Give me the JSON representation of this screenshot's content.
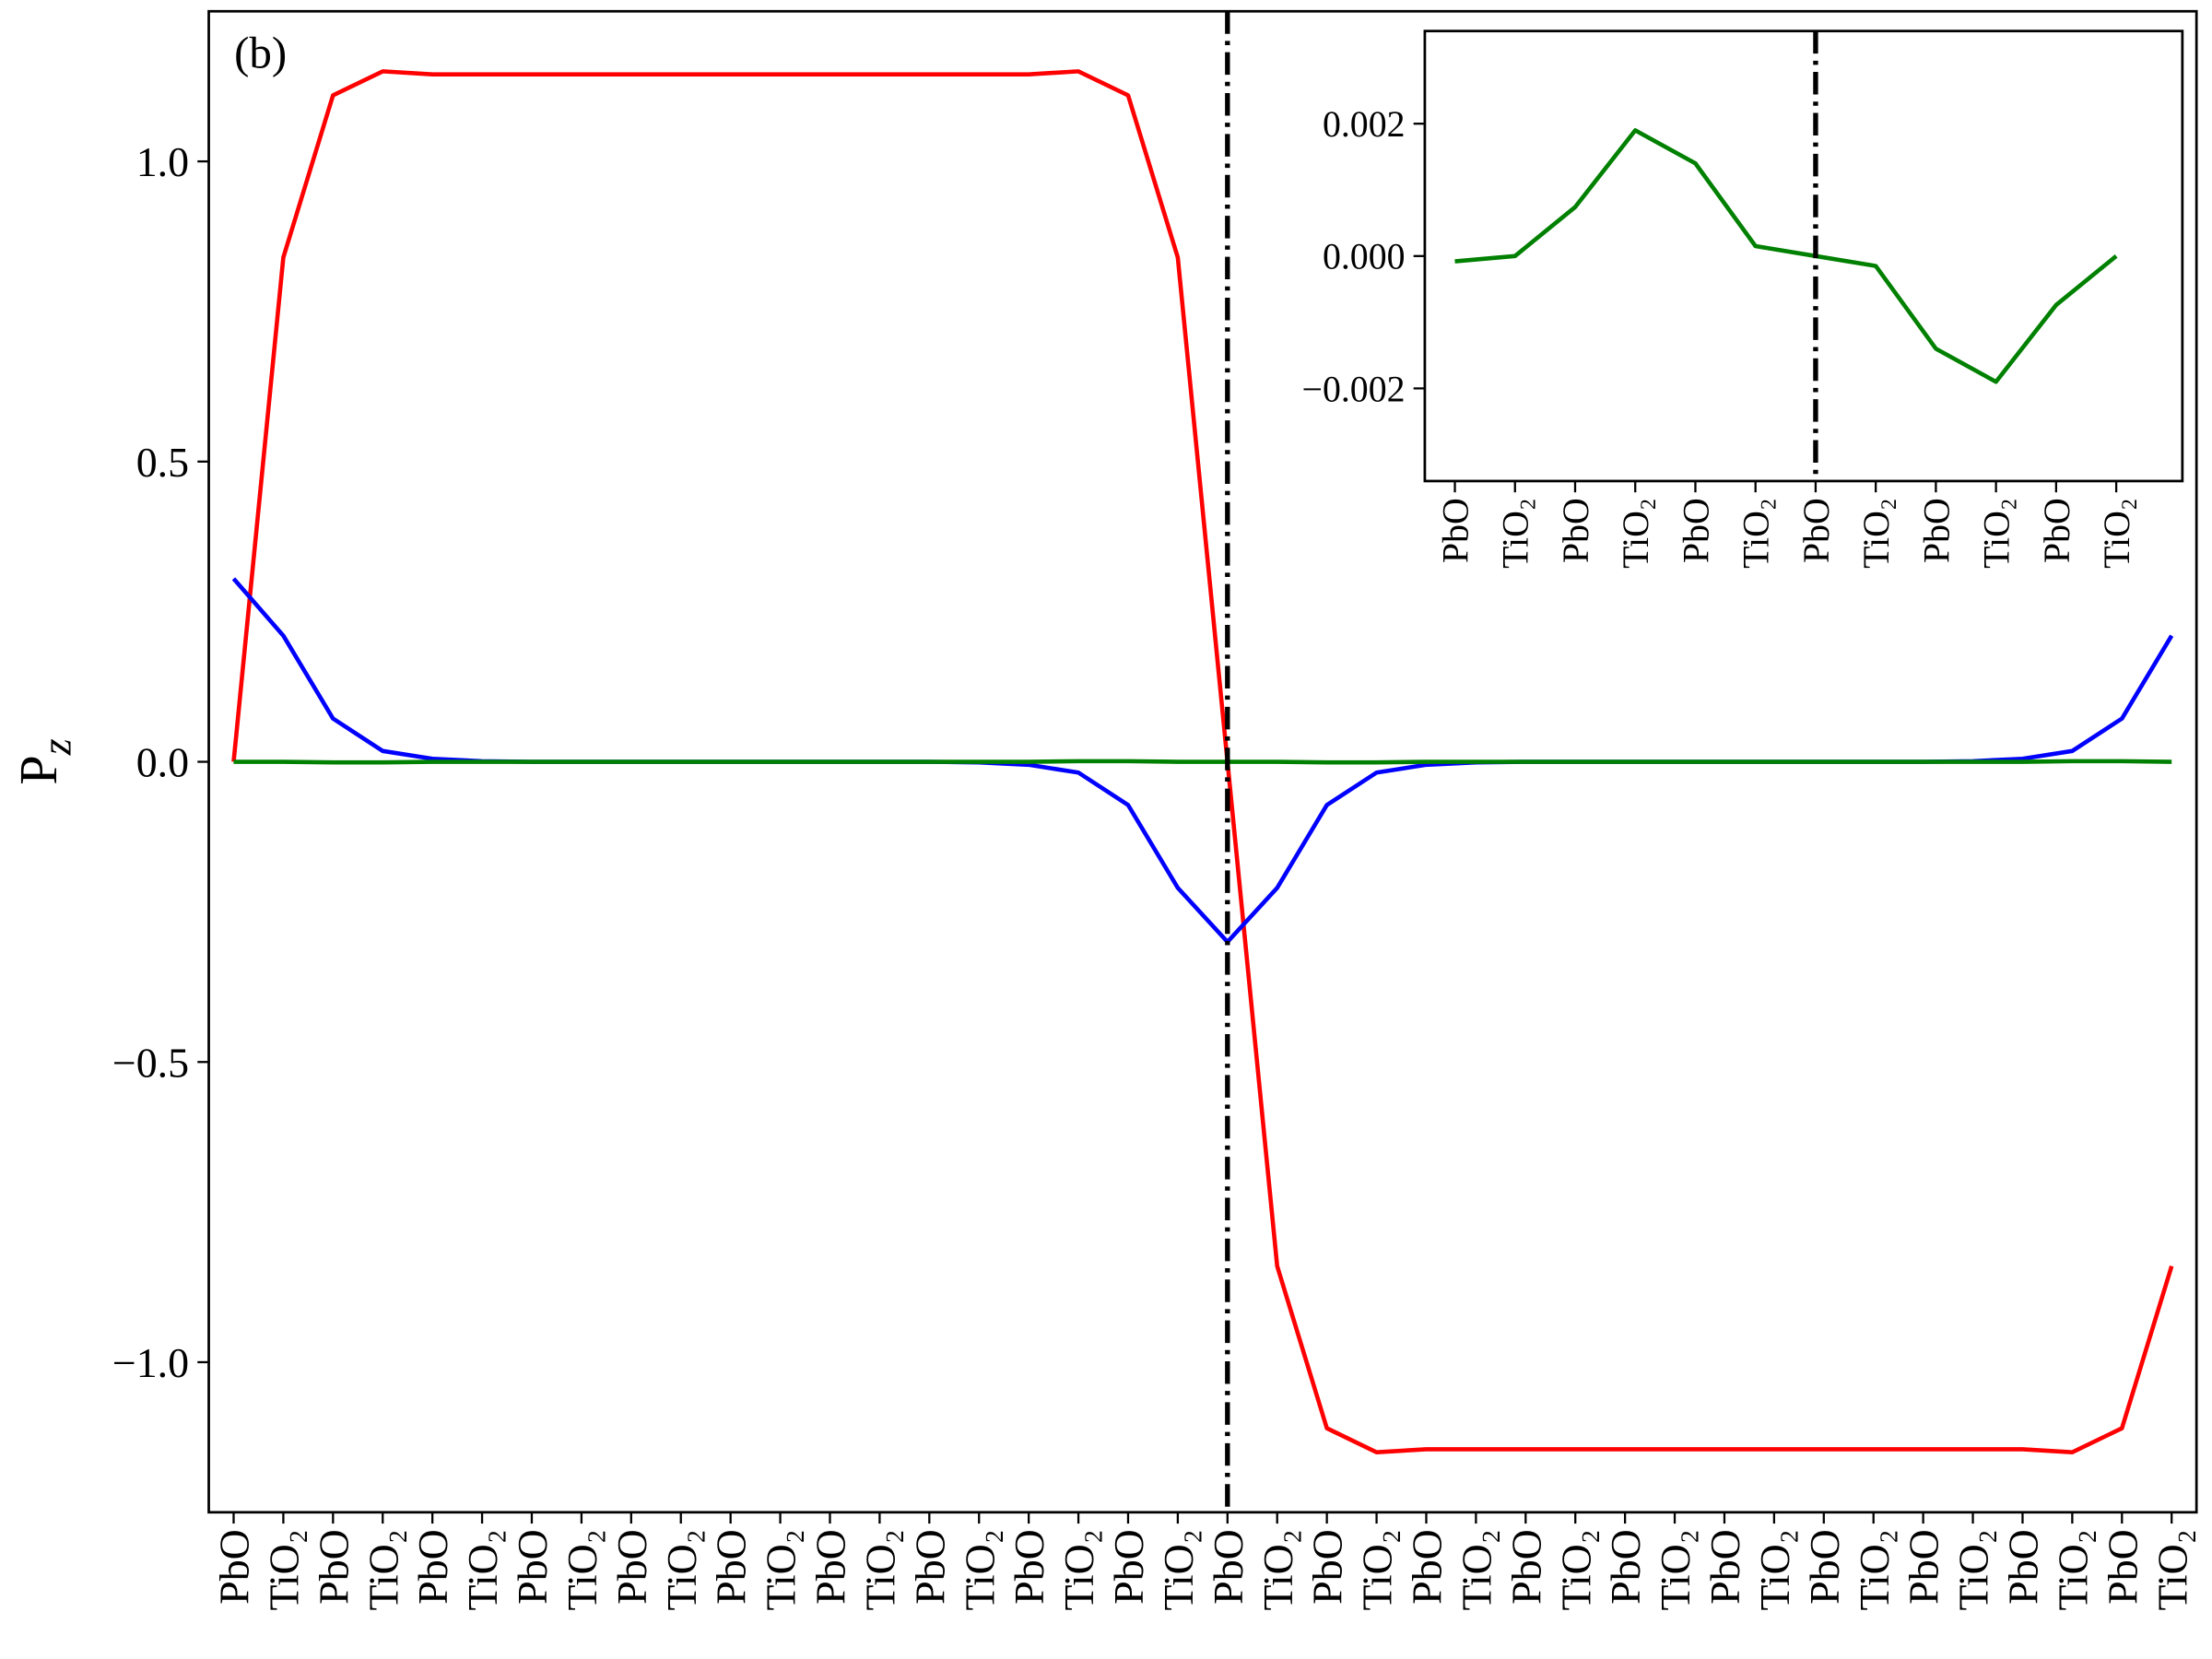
{
  "chart_data": [
    {
      "type": "line",
      "panel_label": "(b)",
      "ylabel": {
        "base": "P",
        "sub": "z"
      },
      "categories": [
        "PbO",
        "TiO₂",
        "PbO",
        "TiO₂",
        "PbO",
        "TiO₂",
        "PbO",
        "TiO₂",
        "PbO",
        "TiO₂",
        "PbO",
        "TiO₂",
        "PbO",
        "TiO₂",
        "PbO",
        "TiO₂",
        "PbO",
        "TiO₂",
        "PbO",
        "TiO₂",
        "PbO",
        "TiO₂",
        "PbO",
        "TiO₂",
        "PbO",
        "TiO₂",
        "PbO",
        "TiO₂",
        "PbO",
        "TiO₂",
        "PbO",
        "TiO₂",
        "PbO",
        "TiO₂",
        "PbO",
        "TiO₂",
        "PbO",
        "TiO₂",
        "PbO",
        "TiO₂"
      ],
      "xlim": [
        -0.5,
        39.5
      ],
      "vline": 20,
      "ylim": [
        -1.25,
        1.25
      ],
      "yticks": [
        {
          "value": -1,
          "label": "−1.0"
        },
        {
          "value": -0.5,
          "label": "−0.5"
        },
        {
          "value": 0,
          "label": "0.0"
        },
        0.5,
        {
          "value": 1,
          "label": "1.0"
        }
      ],
      "series": [
        {
          "color": "#ff0000",
          "values": [
            0,
            0.84,
            1.11,
            1.15,
            1.145,
            1.145,
            1.145,
            1.145,
            1.145,
            1.145,
            1.145,
            1.145,
            1.145,
            1.145,
            1.145,
            1.145,
            1.145,
            1.15,
            1.11,
            0.84,
            0,
            -0.84,
            -1.11,
            -1.15,
            -1.145,
            -1.145,
            -1.145,
            -1.145,
            -1.145,
            -1.145,
            -1.145,
            -1.145,
            -1.145,
            -1.145,
            -1.145,
            -1.145,
            -1.145,
            -1.15,
            -1.11,
            -0.84
          ]
        },
        {
          "color": "#0000ff",
          "values": [
            0.305,
            0.21,
            0.072,
            0.018,
            0.005,
            0.001,
            0,
            0,
            0,
            0,
            0,
            0,
            0,
            0,
            0,
            -0.001,
            -0.005,
            -0.018,
            -0.072,
            -0.21,
            -0.3,
            -0.21,
            -0.072,
            -0.018,
            -0.005,
            -0.001,
            0,
            0,
            0,
            0,
            0,
            0,
            0,
            0,
            0,
            0.001,
            0.005,
            0.018,
            0.072,
            0.21
          ]
        },
        {
          "color": "#008000",
          "values": [
            0,
            0,
            -0.001,
            -0.001,
            0,
            0,
            0,
            0,
            0,
            0,
            0,
            0,
            0,
            0,
            0,
            0,
            0,
            0.001,
            0.001,
            0,
            0,
            0,
            -0.001,
            -0.001,
            0,
            0,
            0,
            0,
            0,
            0,
            0,
            0,
            0,
            0,
            0,
            0,
            0,
            0.001,
            0.001,
            0
          ]
        }
      ]
    },
    {
      "type": "line",
      "categories": [
        "PbO",
        "TiO₂",
        "PbO",
        "TiO₂",
        "PbO",
        "TiO₂",
        "PbO",
        "TiO₂",
        "PbO",
        "TiO₂",
        "PbO",
        "TiO₂"
      ],
      "xlim": [
        -0.5,
        12.1
      ],
      "vline": 6,
      "ylim": [
        -0.0034,
        0.0034
      ],
      "yticks": [
        {
          "value": -0.002,
          "label": "−0.002"
        },
        {
          "value": 0,
          "label": "0.000"
        },
        0.002
      ],
      "series": [
        {
          "color": "#008000",
          "values": [
            -8e-05,
            0,
            0.00074,
            0.0019,
            0.0014,
            0.00015,
            0,
            -0.00015,
            -0.0014,
            -0.0019,
            -0.00074,
            0
          ]
        }
      ]
    }
  ]
}
